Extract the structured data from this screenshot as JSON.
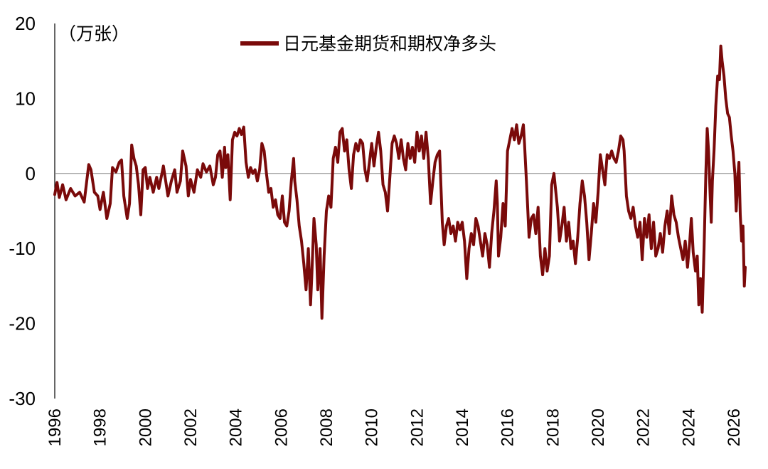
{
  "chart_data": {
    "type": "line",
    "unit_label": "（万张）",
    "legend": [
      {
        "name": "日元基金期货和期权净多头",
        "color": "#7a0a0a"
      }
    ],
    "ylim": [
      -30,
      20
    ],
    "yticks": [
      20,
      10,
      0,
      -10,
      -20,
      -30
    ],
    "xlim": [
      1996,
      2026.5
    ],
    "xticks": [
      "1996",
      "1998",
      "2000",
      "2002",
      "2004",
      "2006",
      "2008",
      "2010",
      "2012",
      "2014",
      "2016",
      "2018",
      "2020",
      "2022",
      "2024",
      "2026"
    ],
    "series": [
      {
        "name": "日元基金期货和期权净多头",
        "color": "#7a0a0a",
        "points": [
          [
            1996.0,
            -2.8
          ],
          [
            1996.1,
            -1.2
          ],
          [
            1996.2,
            -3.2
          ],
          [
            1996.35,
            -1.5
          ],
          [
            1996.5,
            -3.5
          ],
          [
            1996.7,
            -2.0
          ],
          [
            1996.9,
            -3.0
          ],
          [
            1997.1,
            -2.5
          ],
          [
            1997.3,
            -3.8
          ],
          [
            1997.5,
            1.2
          ],
          [
            1997.6,
            0.5
          ],
          [
            1997.75,
            -2.5
          ],
          [
            1997.9,
            -3.0
          ],
          [
            1998.0,
            -4.8
          ],
          [
            1998.15,
            -2.5
          ],
          [
            1998.3,
            -6.0
          ],
          [
            1998.45,
            -4.0
          ],
          [
            1998.55,
            0.8
          ],
          [
            1998.7,
            0.2
          ],
          [
            1998.85,
            1.5
          ],
          [
            1998.95,
            1.8
          ],
          [
            1999.05,
            -3.0
          ],
          [
            1999.2,
            -6.0
          ],
          [
            1999.3,
            -4.0
          ],
          [
            1999.4,
            3.8
          ],
          [
            1999.5,
            2.0
          ],
          [
            1999.6,
            1.0
          ],
          [
            1999.7,
            -1.5
          ],
          [
            1999.8,
            -5.5
          ],
          [
            1999.9,
            0.5
          ],
          [
            2000.0,
            0.8
          ],
          [
            2000.1,
            -2.0
          ],
          [
            2000.2,
            -0.5
          ],
          [
            2000.35,
            -2.5
          ],
          [
            2000.5,
            -0.5
          ],
          [
            2000.6,
            -2.0
          ],
          [
            2000.8,
            1.0
          ],
          [
            2000.9,
            -1.0
          ],
          [
            2001.0,
            -3.0
          ],
          [
            2001.15,
            -1.0
          ],
          [
            2001.3,
            0.5
          ],
          [
            2001.4,
            -2.5
          ],
          [
            2001.55,
            -1.0
          ],
          [
            2001.65,
            3.0
          ],
          [
            2001.8,
            1.0
          ],
          [
            2001.9,
            -3.0
          ],
          [
            2002.0,
            -0.8
          ],
          [
            2002.15,
            -2.5
          ],
          [
            2002.3,
            0.5
          ],
          [
            2002.45,
            -0.5
          ],
          [
            2002.55,
            1.3
          ],
          [
            2002.7,
            0.2
          ],
          [
            2002.85,
            1.0
          ],
          [
            2003.0,
            -1.5
          ],
          [
            2003.1,
            -0.5
          ],
          [
            2003.2,
            2.5
          ],
          [
            2003.3,
            3.0
          ],
          [
            2003.4,
            -0.5
          ],
          [
            2003.5,
            3.5
          ],
          [
            2003.55,
            0.8
          ],
          [
            2003.65,
            2.5
          ],
          [
            2003.75,
            -3.5
          ],
          [
            2003.85,
            4.5
          ],
          [
            2003.95,
            5.5
          ],
          [
            2004.05,
            5.0
          ],
          [
            2004.15,
            6.0
          ],
          [
            2004.25,
            5.2
          ],
          [
            2004.35,
            6.2
          ],
          [
            2004.45,
            1.5
          ],
          [
            2004.55,
            -0.5
          ],
          [
            2004.65,
            0.8
          ],
          [
            2004.75,
            0.0
          ],
          [
            2004.85,
            0.5
          ],
          [
            2004.95,
            -1.0
          ],
          [
            2005.05,
            0.5
          ],
          [
            2005.15,
            4.0
          ],
          [
            2005.25,
            3.0
          ],
          [
            2005.35,
            0.0
          ],
          [
            2005.45,
            -2.5
          ],
          [
            2005.55,
            -2.0
          ],
          [
            2005.65,
            -4.5
          ],
          [
            2005.75,
            -3.5
          ],
          [
            2005.85,
            -5.5
          ],
          [
            2005.95,
            -6.0
          ],
          [
            2006.05,
            -3.0
          ],
          [
            2006.15,
            -6.5
          ],
          [
            2006.25,
            -7.0
          ],
          [
            2006.35,
            -5.0
          ],
          [
            2006.45,
            -1.0
          ],
          [
            2006.55,
            2.0
          ],
          [
            2006.6,
            -1.0
          ],
          [
            2006.7,
            -3.5
          ],
          [
            2006.8,
            -7.0
          ],
          [
            2006.9,
            -9.0
          ],
          [
            2007.0,
            -12.0
          ],
          [
            2007.1,
            -15.5
          ],
          [
            2007.2,
            -10.0
          ],
          [
            2007.3,
            -17.5
          ],
          [
            2007.35,
            -14.0
          ],
          [
            2007.45,
            -6.0
          ],
          [
            2007.55,
            -9.5
          ],
          [
            2007.62,
            -15.5
          ],
          [
            2007.72,
            -10.0
          ],
          [
            2007.8,
            -19.3
          ],
          [
            2007.9,
            -11.0
          ],
          [
            2008.0,
            -5.0
          ],
          [
            2008.1,
            -3.0
          ],
          [
            2008.2,
            -4.5
          ],
          [
            2008.3,
            2.0
          ],
          [
            2008.4,
            3.5
          ],
          [
            2008.5,
            1.5
          ],
          [
            2008.6,
            5.5
          ],
          [
            2008.7,
            6.0
          ],
          [
            2008.8,
            3.0
          ],
          [
            2008.9,
            4.5
          ],
          [
            2009.0,
            0.5
          ],
          [
            2009.1,
            -2.0
          ],
          [
            2009.2,
            2.5
          ],
          [
            2009.3,
            4.0
          ],
          [
            2009.4,
            3.0
          ],
          [
            2009.5,
            4.5
          ],
          [
            2009.6,
            4.0
          ],
          [
            2009.7,
            0.5
          ],
          [
            2009.8,
            -1.0
          ],
          [
            2009.9,
            1.5
          ],
          [
            2010.0,
            4.0
          ],
          [
            2010.1,
            1.0
          ],
          [
            2010.2,
            3.5
          ],
          [
            2010.3,
            5.5
          ],
          [
            2010.4,
            3.0
          ],
          [
            2010.5,
            -1.5
          ],
          [
            2010.6,
            -2.5
          ],
          [
            2010.7,
            -5.0
          ],
          [
            2010.8,
            -0.5
          ],
          [
            2010.9,
            4.0
          ],
          [
            2011.0,
            5.0
          ],
          [
            2011.1,
            4.0
          ],
          [
            2011.2,
            2.0
          ],
          [
            2011.3,
            4.5
          ],
          [
            2011.4,
            2.0
          ],
          [
            2011.5,
            0.5
          ],
          [
            2011.6,
            4.0
          ],
          [
            2011.7,
            2.0
          ],
          [
            2011.8,
            3.5
          ],
          [
            2011.9,
            1.5
          ],
          [
            2012.0,
            5.5
          ],
          [
            2012.1,
            3.0
          ],
          [
            2012.2,
            5.0
          ],
          [
            2012.3,
            2.0
          ],
          [
            2012.4,
            5.5
          ],
          [
            2012.5,
            2.0
          ],
          [
            2012.6,
            -4.0
          ],
          [
            2012.7,
            -1.0
          ],
          [
            2012.8,
            1.5
          ],
          [
            2012.9,
            2.5
          ],
          [
            2013.0,
            3.0
          ],
          [
            2013.05,
            -1.0
          ],
          [
            2013.12,
            -6.5
          ],
          [
            2013.2,
            -9.5
          ],
          [
            2013.3,
            -7.0
          ],
          [
            2013.4,
            -6.0
          ],
          [
            2013.5,
            -8.0
          ],
          [
            2013.6,
            -7.0
          ],
          [
            2013.7,
            -9.0
          ],
          [
            2013.8,
            -6.5
          ],
          [
            2013.9,
            -7.5
          ],
          [
            2014.0,
            -6.5
          ],
          [
            2014.1,
            -9.0
          ],
          [
            2014.2,
            -14.0
          ],
          [
            2014.3,
            -10.0
          ],
          [
            2014.4,
            -8.0
          ],
          [
            2014.5,
            -9.5
          ],
          [
            2014.6,
            -6.0
          ],
          [
            2014.7,
            -7.0
          ],
          [
            2014.8,
            -9.0
          ],
          [
            2014.9,
            -11.0
          ],
          [
            2015.0,
            -8.0
          ],
          [
            2015.1,
            -9.5
          ],
          [
            2015.2,
            -12.5
          ],
          [
            2015.3,
            -8.0
          ],
          [
            2015.4,
            -5.0
          ],
          [
            2015.5,
            -1.0
          ],
          [
            2015.55,
            -4.0
          ],
          [
            2015.6,
            -11.0
          ],
          [
            2015.7,
            -8.5
          ],
          [
            2015.8,
            -4.0
          ],
          [
            2015.9,
            -7.0
          ],
          [
            2016.0,
            3.0
          ],
          [
            2016.1,
            4.5
          ],
          [
            2016.2,
            6.0
          ],
          [
            2016.3,
            4.5
          ],
          [
            2016.4,
            6.5
          ],
          [
            2016.5,
            4.0
          ],
          [
            2016.6,
            5.0
          ],
          [
            2016.7,
            6.5
          ],
          [
            2016.75,
            4.0
          ],
          [
            2016.85,
            -2.0
          ],
          [
            2016.95,
            -8.5
          ],
          [
            2017.05,
            -6.0
          ],
          [
            2017.15,
            -5.5
          ],
          [
            2017.25,
            -8.0
          ],
          [
            2017.35,
            -4.5
          ],
          [
            2017.45,
            -11.0
          ],
          [
            2017.55,
            -13.5
          ],
          [
            2017.65,
            -10.0
          ],
          [
            2017.75,
            -13.0
          ],
          [
            2017.85,
            -11.0
          ],
          [
            2017.95,
            -1.5
          ],
          [
            2018.05,
            0.0
          ],
          [
            2018.1,
            -1.5
          ],
          [
            2018.2,
            -4.5
          ],
          [
            2018.3,
            -9.0
          ],
          [
            2018.4,
            -7.0
          ],
          [
            2018.5,
            -4.5
          ],
          [
            2018.6,
            -9.0
          ],
          [
            2018.7,
            -6.5
          ],
          [
            2018.8,
            -10.0
          ],
          [
            2018.9,
            -9.0
          ],
          [
            2019.0,
            -12.0
          ],
          [
            2019.1,
            -8.5
          ],
          [
            2019.2,
            -4.0
          ],
          [
            2019.3,
            -1.0
          ],
          [
            2019.4,
            -3.0
          ],
          [
            2019.5,
            -6.5
          ],
          [
            2019.6,
            -11.5
          ],
          [
            2019.7,
            -8.0
          ],
          [
            2019.8,
            -4.0
          ],
          [
            2019.9,
            -6.5
          ],
          [
            2020.0,
            -2.5
          ],
          [
            2020.1,
            2.5
          ],
          [
            2020.2,
            0.5
          ],
          [
            2020.3,
            -1.5
          ],
          [
            2020.4,
            2.5
          ],
          [
            2020.5,
            2.0
          ],
          [
            2020.6,
            3.0
          ],
          [
            2020.7,
            2.0
          ],
          [
            2020.8,
            1.5
          ],
          [
            2020.9,
            3.0
          ],
          [
            2021.0,
            5.0
          ],
          [
            2021.1,
            4.5
          ],
          [
            2021.15,
            3.0
          ],
          [
            2021.25,
            -3.0
          ],
          [
            2021.35,
            -5.0
          ],
          [
            2021.45,
            -6.0
          ],
          [
            2021.55,
            -4.5
          ],
          [
            2021.65,
            -7.0
          ],
          [
            2021.75,
            -8.5
          ],
          [
            2021.85,
            -6.5
          ],
          [
            2021.95,
            -11.5
          ],
          [
            2022.05,
            -6.0
          ],
          [
            2022.15,
            -8.5
          ],
          [
            2022.25,
            -5.5
          ],
          [
            2022.35,
            -10.0
          ],
          [
            2022.45,
            -6.5
          ],
          [
            2022.55,
            -11.0
          ],
          [
            2022.65,
            -10.0
          ],
          [
            2022.75,
            -8.0
          ],
          [
            2022.85,
            -10.5
          ],
          [
            2022.95,
            -7.0
          ],
          [
            2023.05,
            -5.0
          ],
          [
            2023.15,
            -8.0
          ],
          [
            2023.25,
            -3.0
          ],
          [
            2023.35,
            -5.5
          ],
          [
            2023.45,
            -6.5
          ],
          [
            2023.55,
            -8.5
          ],
          [
            2023.65,
            -10.0
          ],
          [
            2023.75,
            -11.5
          ],
          [
            2023.85,
            -9.0
          ],
          [
            2023.95,
            -12.5
          ],
          [
            2024.05,
            -9.0
          ],
          [
            2024.12,
            -6.0
          ],
          [
            2024.2,
            -10.5
          ],
          [
            2024.3,
            -13.0
          ],
          [
            2024.38,
            -11.0
          ],
          [
            2024.45,
            -17.5
          ],
          [
            2024.52,
            -14.0
          ],
          [
            2024.6,
            -18.5
          ],
          [
            2024.68,
            -10.0
          ],
          [
            2024.76,
            0.0
          ],
          [
            2024.82,
            6.0
          ],
          [
            2024.88,
            3.0
          ],
          [
            2024.95,
            -3.0
          ],
          [
            2025.0,
            -6.5
          ],
          [
            2025.05,
            -1.0
          ],
          [
            2025.12,
            3.0
          ],
          [
            2025.2,
            9.0
          ],
          [
            2025.28,
            13.0
          ],
          [
            2025.36,
            12.5
          ],
          [
            2025.42,
            17.0
          ],
          [
            2025.48,
            15.0
          ],
          [
            2025.56,
            13.0
          ],
          [
            2025.64,
            10.0
          ],
          [
            2025.72,
            8.0
          ],
          [
            2025.8,
            7.5
          ],
          [
            2025.88,
            5.0
          ],
          [
            2025.96,
            3.0
          ],
          [
            2026.04,
            0.0
          ],
          [
            2026.1,
            -5.0
          ],
          [
            2026.16,
            -1.0
          ],
          [
            2026.22,
            1.5
          ],
          [
            2026.28,
            -5.5
          ],
          [
            2026.34,
            -9.0
          ],
          [
            2026.4,
            -7.0
          ],
          [
            2026.46,
            -15.0
          ],
          [
            2026.5,
            -12.5
          ]
        ]
      }
    ]
  }
}
